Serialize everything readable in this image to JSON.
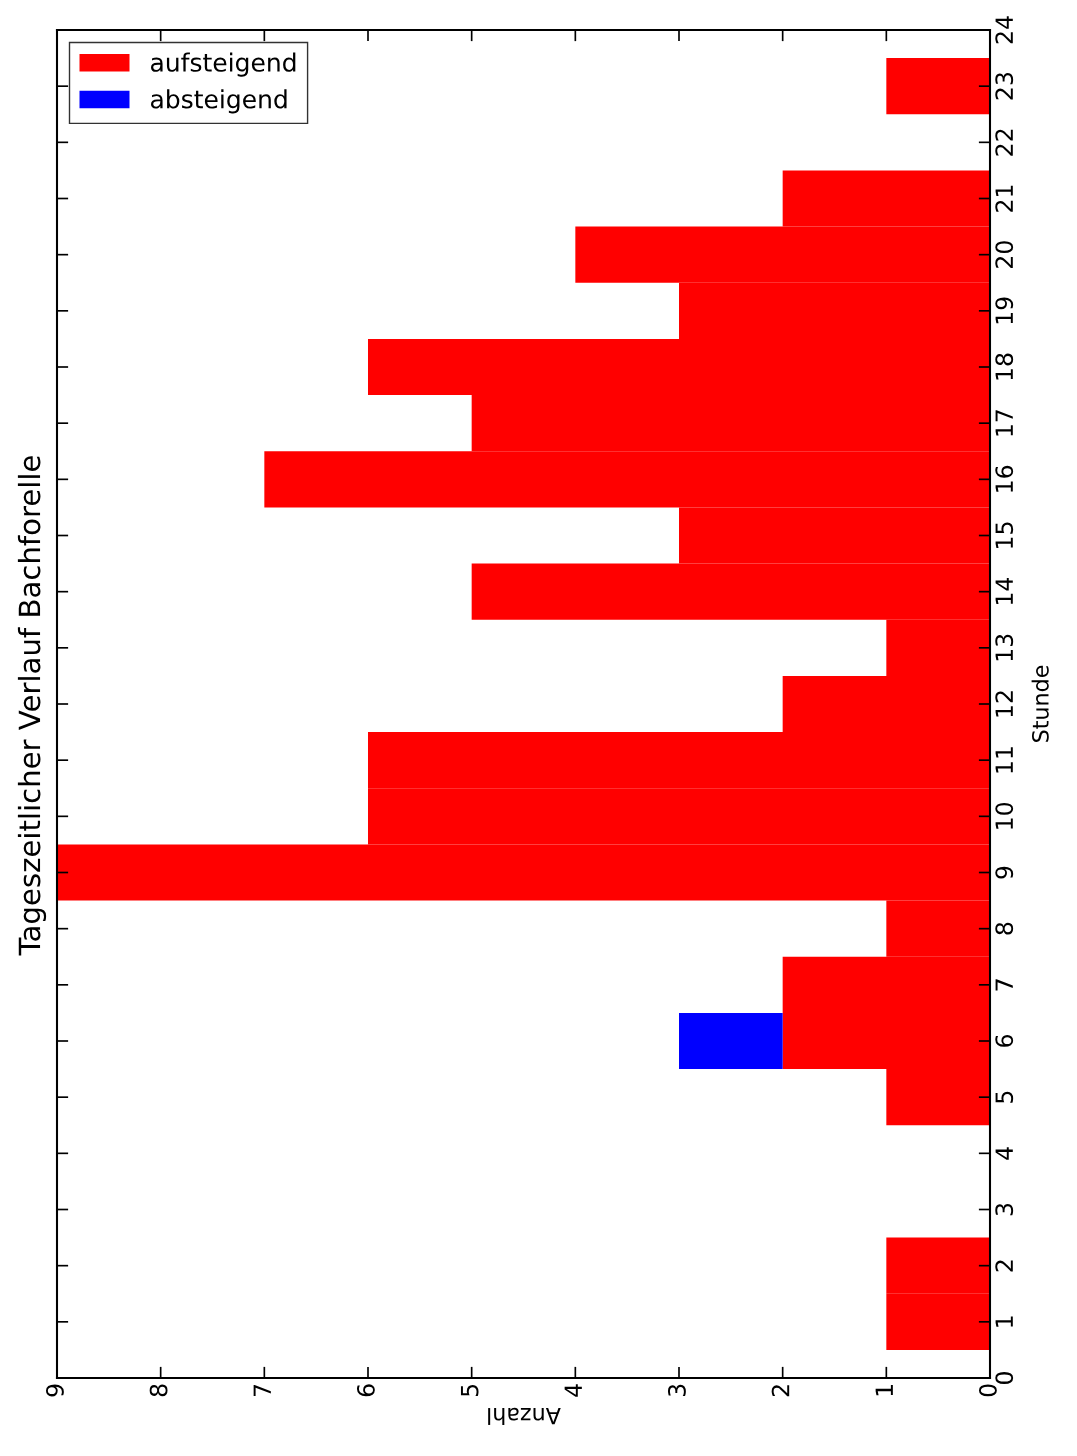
{
  "chart_data": {
    "type": "bar",
    "title": "Tageszeitlicher Verlauf Bachforelle",
    "xlabel": "Anzahl",
    "ylabel": "Stunde",
    "orientation": "horizontal",
    "stacked": true,
    "x": [
      0,
      1,
      2,
      3,
      4,
      5,
      6,
      7,
      8,
      9,
      10,
      11,
      12,
      13,
      14,
      15,
      16,
      17,
      18,
      19,
      20,
      21,
      22,
      23
    ],
    "series": [
      {
        "name": "aufsteigend",
        "color": "#ff0000",
        "values": [
          0,
          1,
          1,
          0,
          0,
          1,
          2,
          2,
          1,
          9,
          6,
          6,
          2,
          1,
          5,
          3,
          7,
          5,
          6,
          3,
          4,
          2,
          0,
          1
        ]
      },
      {
        "name": "absteigend",
        "color": "#0000ff",
        "values": [
          0,
          0,
          0,
          0,
          0,
          0,
          1,
          0,
          0,
          0,
          0,
          0,
          0,
          0,
          0,
          0,
          0,
          0,
          0,
          0,
          0,
          0,
          0,
          0
        ]
      }
    ],
    "xlim": [
      9,
      0
    ],
    "xticks": [
      0,
      1,
      2,
      3,
      4,
      5,
      6,
      7,
      8,
      9
    ],
    "ylim": [
      0,
      24
    ],
    "yticks": [
      0,
      1,
      2,
      3,
      4,
      5,
      6,
      7,
      8,
      9,
      10,
      11,
      12,
      13,
      14,
      15,
      16,
      17,
      18,
      19,
      20,
      21,
      22,
      23,
      24
    ],
    "grid": false,
    "legend": "top left"
  }
}
